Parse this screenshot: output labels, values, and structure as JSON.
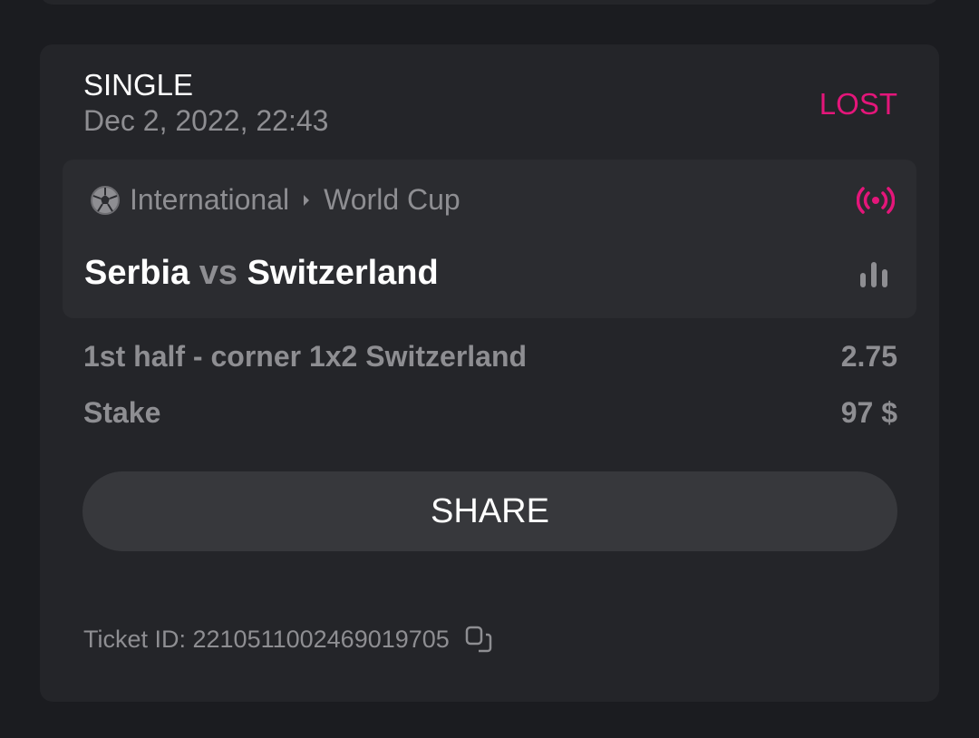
{
  "bet": {
    "type": "SINGLE",
    "date": "Dec 2, 2022, 22:43",
    "status": "LOST",
    "status_color": "#e4167a"
  },
  "match": {
    "category": "International",
    "league": "World Cup",
    "home": "Serbia",
    "vs": "vs",
    "away": "Switzerland",
    "sport_icon": "soccer-ball-icon",
    "live_icon": "broadcast-icon",
    "stats_icon": "bar-chart-icon"
  },
  "selection": {
    "market": "1st half - corner 1x2 Switzerland",
    "odds": "2.75"
  },
  "stake": {
    "label": "Stake",
    "value": "97 $"
  },
  "share_label": "SHARE",
  "ticket": {
    "label": "Ticket ID: 2210511002469019705"
  }
}
